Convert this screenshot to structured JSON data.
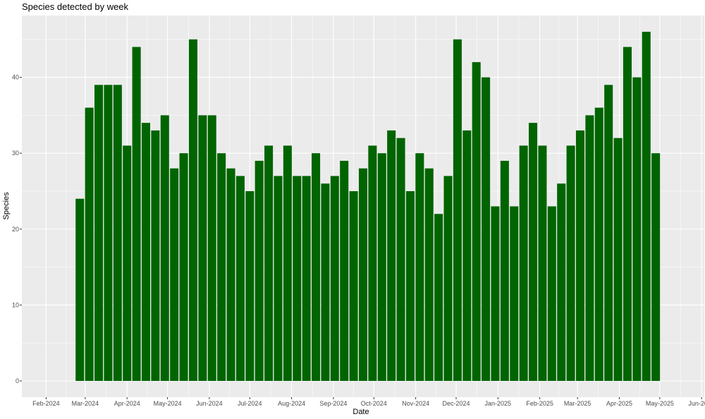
{
  "chart_data": {
    "type": "bar",
    "title": "Species detected by week",
    "xlabel": "Date",
    "ylabel": "Species",
    "ylim": [
      0,
      46
    ],
    "y_ticks": [
      0,
      10,
      20,
      30,
      40
    ],
    "x_range": [
      "2024-01-14",
      "2025-06-03"
    ],
    "x_ticks": [
      {
        "date": "2024-02-01",
        "label": "Feb-2024"
      },
      {
        "date": "2024-03-01",
        "label": "Mar-2024"
      },
      {
        "date": "2024-04-01",
        "label": "Apr-2024"
      },
      {
        "date": "2024-05-01",
        "label": "May-2024"
      },
      {
        "date": "2024-06-01",
        "label": "Jun-2024"
      },
      {
        "date": "2024-07-01",
        "label": "Jul-2024"
      },
      {
        "date": "2024-08-01",
        "label": "Aug-2024"
      },
      {
        "date": "2024-09-01",
        "label": "Sep-2024"
      },
      {
        "date": "2024-10-01",
        "label": "Oct-2024"
      },
      {
        "date": "2024-11-01",
        "label": "Nov-2024"
      },
      {
        "date": "2024-12-01",
        "label": "Dec-2024"
      },
      {
        "date": "2025-01-01",
        "label": "Jan-2025"
      },
      {
        "date": "2025-02-01",
        "label": "Feb-2025"
      },
      {
        "date": "2025-03-01",
        "label": "Mar-2025"
      },
      {
        "date": "2025-04-01",
        "label": "Apr-2025"
      },
      {
        "date": "2025-05-01",
        "label": "May-2025"
      },
      {
        "date": "2025-06-01",
        "label": "Jun-2025"
      }
    ],
    "x": [
      "2024-02-26",
      "2024-03-04",
      "2024-03-11",
      "2024-03-18",
      "2024-03-25",
      "2024-04-01",
      "2024-04-08",
      "2024-04-15",
      "2024-04-22",
      "2024-04-29",
      "2024-05-06",
      "2024-05-13",
      "2024-05-20",
      "2024-05-27",
      "2024-06-03",
      "2024-06-10",
      "2024-06-17",
      "2024-06-24",
      "2024-07-01",
      "2024-07-08",
      "2024-07-15",
      "2024-07-22",
      "2024-07-29",
      "2024-08-05",
      "2024-08-12",
      "2024-08-19",
      "2024-08-26",
      "2024-09-02",
      "2024-09-09",
      "2024-09-16",
      "2024-09-23",
      "2024-09-30",
      "2024-10-07",
      "2024-10-14",
      "2024-10-21",
      "2024-10-28",
      "2024-11-04",
      "2024-11-11",
      "2024-11-18",
      "2024-11-25",
      "2024-12-02",
      "2024-12-09",
      "2024-12-16",
      "2024-12-23",
      "2024-12-30",
      "2025-01-06",
      "2025-01-13",
      "2025-01-20",
      "2025-01-27",
      "2025-02-03",
      "2025-02-10",
      "2025-02-17",
      "2025-02-24",
      "2025-03-03",
      "2025-03-10",
      "2025-03-17",
      "2025-03-24",
      "2025-03-31",
      "2025-04-07",
      "2025-04-14",
      "2025-04-21",
      "2025-04-28"
    ],
    "values": [
      24,
      36,
      39,
      39,
      39,
      31,
      44,
      34,
      33,
      35,
      28,
      30,
      45,
      35,
      35,
      30,
      28,
      27,
      25,
      29,
      31,
      27,
      31,
      27,
      27,
      30,
      26,
      27,
      29,
      25,
      28,
      31,
      30,
      33,
      32,
      25,
      30,
      28,
      22,
      27,
      45,
      33,
      42,
      40,
      23,
      29,
      23,
      31,
      34,
      31,
      23,
      26,
      31,
      33,
      35,
      36,
      39,
      32,
      44,
      40,
      46,
      30
    ],
    "bar_color": "#006400",
    "panel_color": "#ebebeb",
    "grid": true,
    "legend": "none"
  }
}
